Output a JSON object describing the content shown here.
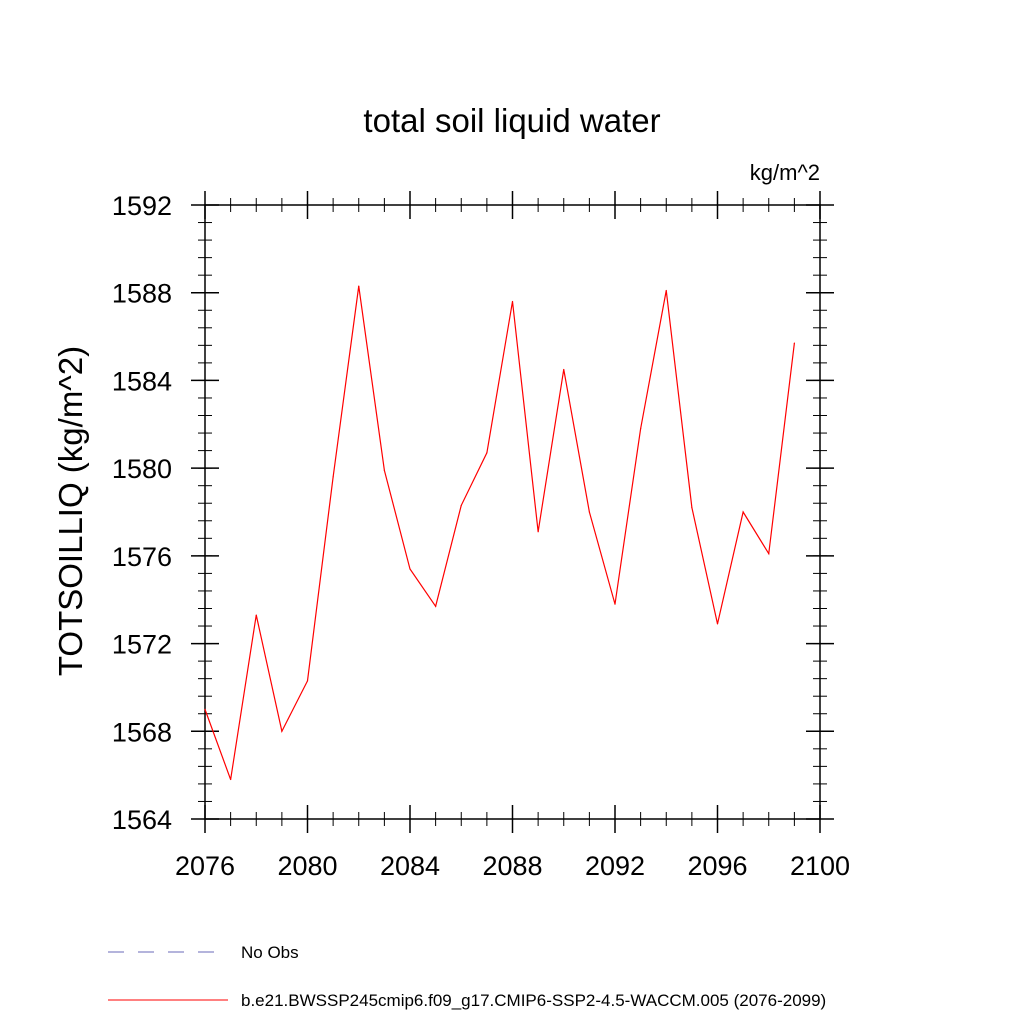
{
  "chart_data": {
    "type": "line",
    "title": "total soil liquid water",
    "units_label": "kg/m^2",
    "ylabel": "TOTSOILLIQ  (kg/m^2)",
    "xlabel": "",
    "xlim": [
      2076,
      2100
    ],
    "ylim": [
      1564,
      1592
    ],
    "x_ticks": [
      2076,
      2080,
      2084,
      2088,
      2092,
      2096,
      2100
    ],
    "y_ticks": [
      1564,
      1568,
      1572,
      1576,
      1580,
      1584,
      1588,
      1592
    ],
    "x_minor_step": 1,
    "y_minor_step": 0.8,
    "grid": false,
    "legend_position": "bottom-left",
    "series": [
      {
        "name": "b.e21.BWSSP245cmip6.f09_g17.CMIP6-SSP2-4.5-WACCM.005 (2076-2099)",
        "color": "#ff0000",
        "style": "solid",
        "x": [
          2076,
          2077,
          2078,
          2079,
          2080,
          2081,
          2082,
          2083,
          2084,
          2085,
          2086,
          2087,
          2088,
          2089,
          2090,
          2091,
          2092,
          2093,
          2094,
          2095,
          2096,
          2097,
          2098,
          2099
        ],
        "y": [
          1569.0,
          1565.8,
          1573.3,
          1568.0,
          1570.3,
          1579.6,
          1588.3,
          1579.9,
          1575.4,
          1573.7,
          1578.3,
          1580.7,
          1587.6,
          1577.1,
          1584.5,
          1578.0,
          1573.8,
          1581.8,
          1588.1,
          1578.2,
          1572.9,
          1578.0,
          1576.1,
          1585.7
        ]
      },
      {
        "name": "No Obs",
        "color": "#6a6ab8",
        "style": "dashed",
        "x": [],
        "y": []
      }
    ]
  }
}
